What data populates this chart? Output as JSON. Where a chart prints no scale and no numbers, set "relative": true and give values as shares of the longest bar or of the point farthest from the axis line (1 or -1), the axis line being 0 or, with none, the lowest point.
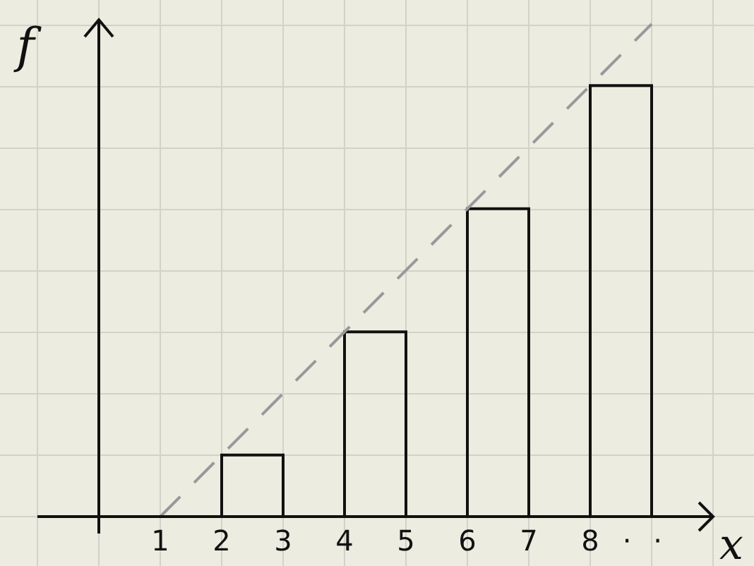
{
  "chart_data": {
    "type": "histogram",
    "relative": true,
    "xlabel": "x",
    "ylabel": "f",
    "bins": [
      2,
      3,
      4,
      5,
      6,
      7,
      8,
      9
    ],
    "values": [
      0.125,
      0,
      0.375,
      0,
      0.625,
      0,
      0.875
    ],
    "color": "#111111",
    "xlim": [
      0,
      10
    ],
    "xticks": [
      1,
      2,
      3,
      4,
      5,
      6,
      7,
      8,
      {
        "value": 8.6,
        "label": "·"
      },
      {
        "value": 9.1,
        "label": "·"
      }
    ],
    "grid": true,
    "series": [
      {
        "type": "line",
        "x": [
          1,
          9
        ],
        "values": [
          0,
          1
        ],
        "color": "#999999",
        "line_style": "dashed"
      }
    ]
  }
}
